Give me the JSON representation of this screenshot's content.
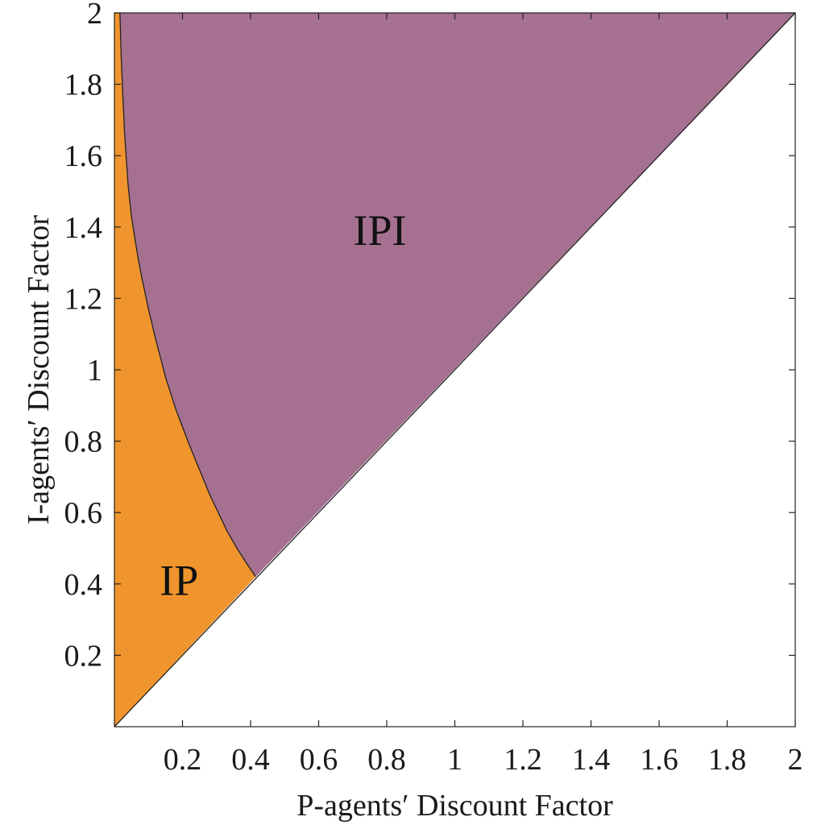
{
  "chart_data": {
    "type": "area",
    "title": "",
    "xlabel": "P-agents′ Discount Factor",
    "ylabel": "I-agents′ Discount Factor",
    "xlim": [
      0,
      2
    ],
    "ylim": [
      0,
      2
    ],
    "xticks": [
      "0.2",
      "0.4",
      "0.6",
      "0.8",
      "1",
      "1.2",
      "1.4",
      "1.6",
      "1.8",
      "2"
    ],
    "yticks": [
      "0.2",
      "0.4",
      "0.6",
      "0.8",
      "1",
      "1.2",
      "1.4",
      "1.6",
      "1.8",
      "2"
    ],
    "grid": false,
    "regions": [
      {
        "name": "IP",
        "color": "#f0952d",
        "description_label": "IP",
        "label_position": [
          0.19,
          0.41
        ]
      },
      {
        "name": "IPI",
        "color": "#a67091",
        "description_label": "IPI",
        "label_position": [
          0.78,
          1.39
        ]
      }
    ],
    "boundary_curve": {
      "x": [
        0.016,
        0.02,
        0.025,
        0.03,
        0.04,
        0.05,
        0.06,
        0.07,
        0.08,
        0.1,
        0.12,
        0.15,
        0.18,
        0.2,
        0.22,
        0.25,
        0.28,
        0.3,
        0.33,
        0.36,
        0.39,
        0.415
      ],
      "y": [
        2.0,
        1.88,
        1.76,
        1.66,
        1.52,
        1.43,
        1.37,
        1.31,
        1.26,
        1.17,
        1.09,
        0.98,
        0.89,
        0.84,
        0.79,
        0.72,
        0.65,
        0.61,
        0.55,
        0.5,
        0.455,
        0.42
      ]
    },
    "diagonal": {
      "x": [
        0,
        2
      ],
      "y": [
        0,
        2
      ]
    }
  }
}
